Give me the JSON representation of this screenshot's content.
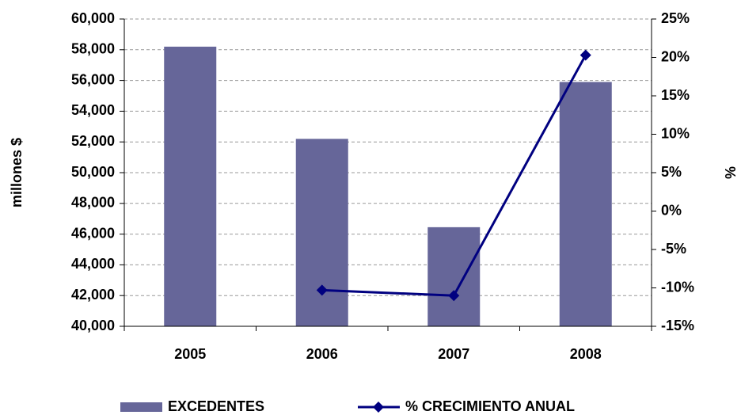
{
  "chart_data": {
    "type": "bar_line",
    "categories": [
      "2005",
      "2006",
      "2007",
      "2008"
    ],
    "series": [
      {
        "name": "EXCEDENTES",
        "color": "#666699",
        "type": "bar",
        "values": [
          58200,
          52200,
          46450,
          55900
        ]
      },
      {
        "name": "% CRECIMIENTO ANUAL",
        "color": "#000080",
        "type": "line",
        "axis": "y2",
        "values": [
          null,
          -10.3,
          -11.0,
          20.3
        ]
      }
    ],
    "ylabel": "millones $",
    "y2label": "%",
    "ylim": [
      40000,
      60000
    ],
    "yticks": [
      {
        "value": 40000,
        "label": "40,000"
      },
      {
        "value": 42000,
        "label": "42,000"
      },
      {
        "value": 44000,
        "label": "44,000"
      },
      {
        "value": 46000,
        "label": "46,000"
      },
      {
        "value": 48000,
        "label": "48,000"
      },
      {
        "value": 50000,
        "label": "50,000"
      },
      {
        "value": 52000,
        "label": "52,000"
      },
      {
        "value": 54000,
        "label": "54,000"
      },
      {
        "value": 56000,
        "label": "56,000"
      },
      {
        "value": 58000,
        "label": "58,000"
      },
      {
        "value": 60000,
        "label": "60,000"
      }
    ],
    "y2lim": [
      -15,
      25
    ],
    "y2ticks": [
      {
        "value": -15,
        "label": "-15%"
      },
      {
        "value": -10,
        "label": "-10%"
      },
      {
        "value": -5,
        "label": "-5%"
      },
      {
        "value": 0,
        "label": "0%"
      },
      {
        "value": 5,
        "label": "5%"
      },
      {
        "value": 10,
        "label": "10%"
      },
      {
        "value": 15,
        "label": "15%"
      },
      {
        "value": 20,
        "label": "20%"
      },
      {
        "value": 25,
        "label": "25%"
      }
    ],
    "grid": true,
    "legend": "bottom"
  }
}
